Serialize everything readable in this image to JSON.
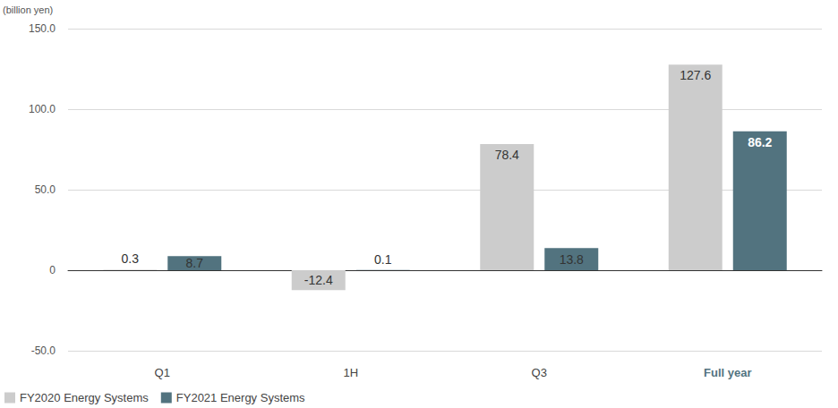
{
  "chart_data": {
    "type": "bar",
    "y_label": "(billion yen)",
    "categories": [
      "Q1",
      "1H",
      "Q3",
      "Full year"
    ],
    "series": [
      {
        "name": "FY2020 Energy Systems",
        "color": "#cccccc",
        "values": [
          0.3,
          -12.4,
          78.4,
          127.6
        ]
      },
      {
        "name": "FY2021 Energy Systems",
        "color": "#52737f",
        "values": [
          8.7,
          0.1,
          13.8,
          86.2
        ]
      }
    ],
    "ylim": [
      -50,
      150
    ],
    "yticks": [
      {
        "value": -50,
        "label": "-50.0"
      },
      0,
      {
        "value": 50,
        "label": "50.0"
      },
      {
        "value": 100,
        "label": "100.0"
      },
      {
        "value": 150,
        "label": "150.0"
      }
    ],
    "grid": true,
    "legend": "bottom-left",
    "data_labels": true
  }
}
